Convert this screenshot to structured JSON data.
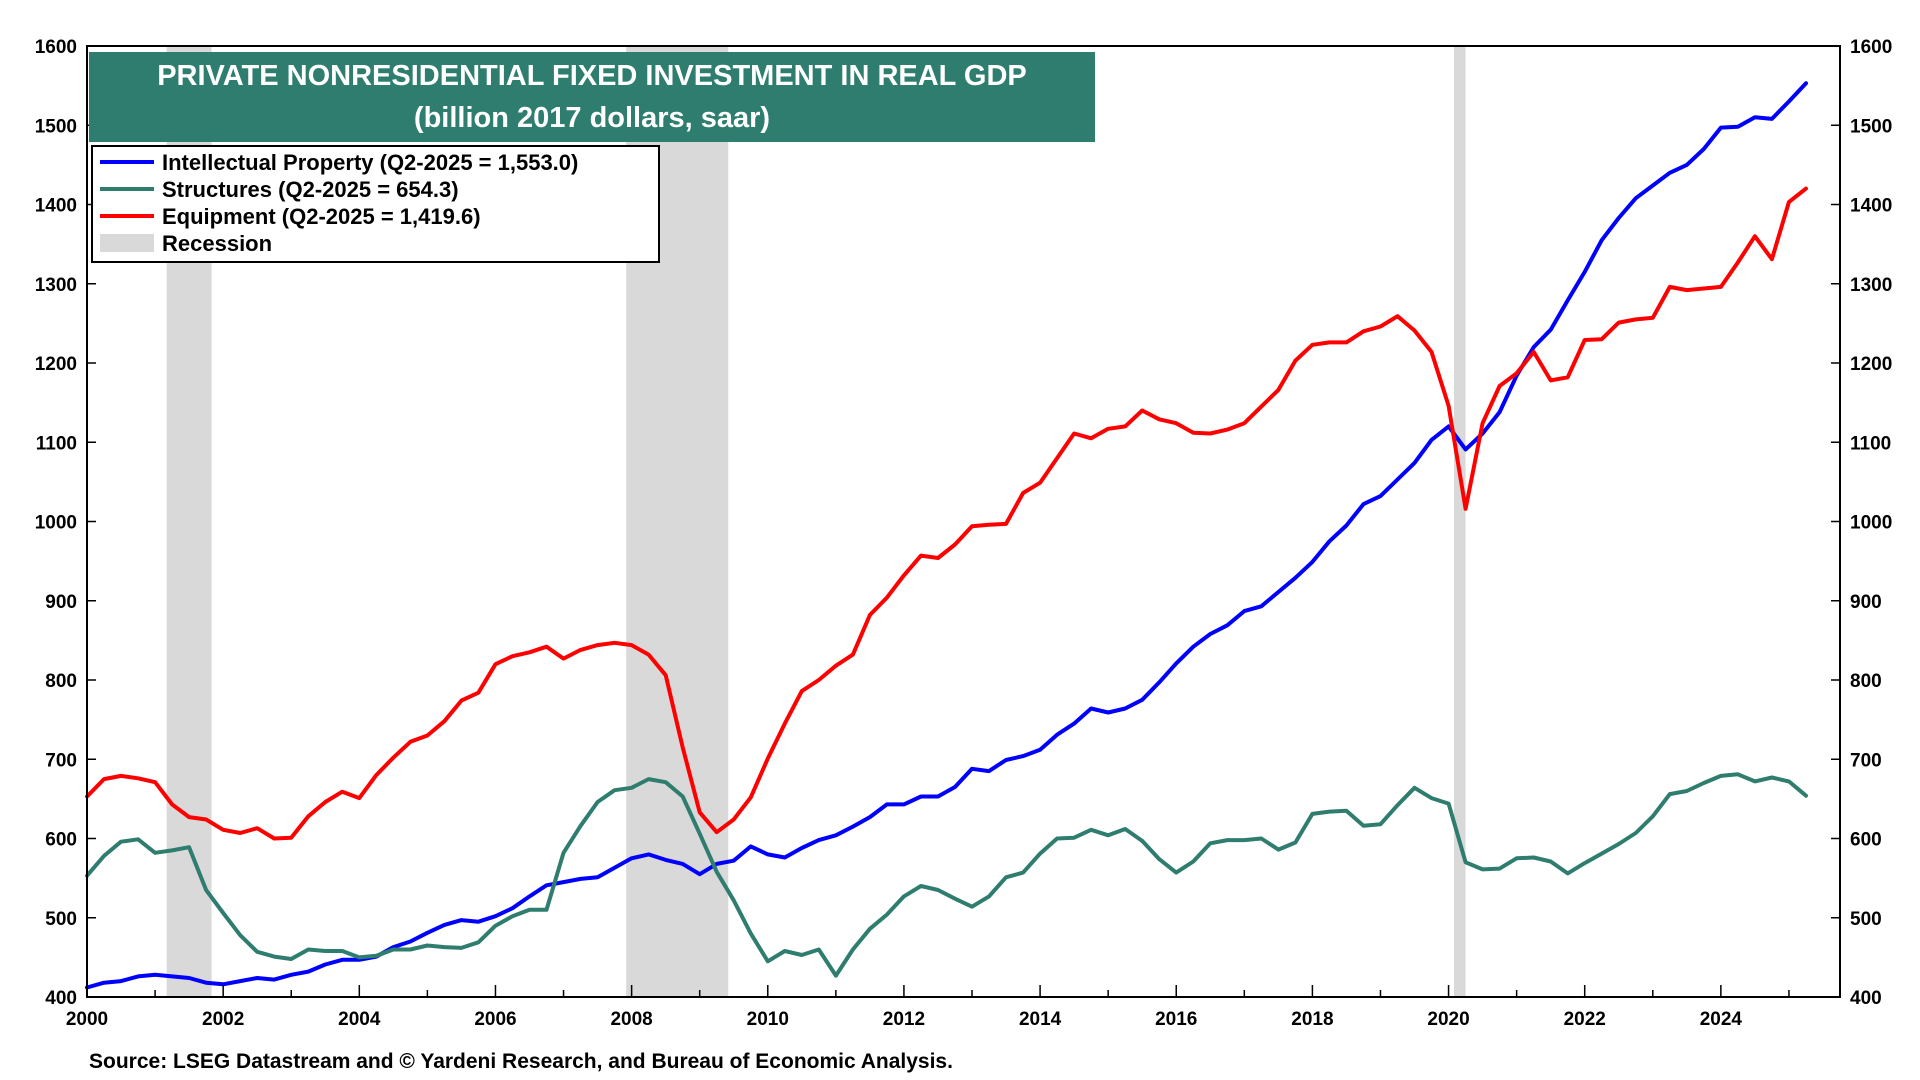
{
  "chart_data": {
    "type": "line",
    "title": "PRIVATE NONRESIDENTIAL FIXED INVESTMENT IN REAL GDP",
    "subtitle": "(billion 2017 dollars, saar)",
    "source": "Source: LSEG Datastream and © Yardeni Research, and Bureau of Economic Analysis.",
    "xlim": [
      2000,
      2025.75
    ],
    "ylim": [
      400,
      1600
    ],
    "x_ticks": [
      2000,
      2002,
      2004,
      2006,
      2008,
      2010,
      2012,
      2014,
      2016,
      2018,
      2020,
      2022,
      2024
    ],
    "x_tick_labels": [
      "2000",
      "2002",
      "2004",
      "2006",
      "2008",
      "2010",
      "2012",
      "2014",
      "2016",
      "2018",
      "2020",
      "2022",
      "2024"
    ],
    "y_ticks": [
      400,
      500,
      600,
      700,
      800,
      900,
      1000,
      1100,
      1200,
      1300,
      1400,
      1500,
      1600
    ],
    "y_tick_labels": [
      "400",
      "500",
      "600",
      "700",
      "800",
      "900",
      "1000",
      "1100",
      "1200",
      "1300",
      "1400",
      "1500",
      "1600"
    ],
    "grid": false,
    "legend_position": "top-left",
    "recessions": [
      {
        "start": 2001.17,
        "end": 2001.83
      },
      {
        "start": 2007.92,
        "end": 2009.42
      },
      {
        "start": 2020.08,
        "end": 2020.25
      }
    ],
    "recession_label": "Recession",
    "recession_color": "#d9d9d9",
    "x_start": 2000.0,
    "x_step": 0.25,
    "series": [
      {
        "name": "Intellectual Property (Q2-2025 = 1,553.0)",
        "color": "#0000ff",
        "values": [
          412,
          418,
          420,
          426,
          428,
          426,
          424,
          418,
          416,
          420,
          424,
          422,
          428,
          432,
          441,
          447,
          447,
          451,
          463,
          470,
          481,
          491,
          497,
          495,
          502,
          512,
          527,
          541,
          545,
          549,
          551,
          563,
          575,
          580,
          573,
          568,
          555,
          568,
          572,
          590,
          580,
          576,
          588,
          598,
          604,
          615,
          627,
          643,
          643,
          653,
          653,
          665,
          688,
          685,
          699,
          704,
          712,
          731,
          745,
          764,
          759,
          764,
          775,
          797,
          821,
          842,
          858,
          869,
          887,
          893,
          911,
          929,
          949,
          975,
          995,
          1022,
          1032,
          1053,
          1074,
          1103,
          1120,
          1091,
          1111,
          1138,
          1184,
          1220,
          1242,
          1279,
          1315,
          1355,
          1383,
          1408,
          1424,
          1440,
          1450,
          1470,
          1497,
          1498,
          1510,
          1508,
          1530,
          1553
        ]
      },
      {
        "name": "Structures  (Q2-2025 = 654.3)",
        "color": "#2e7d6e",
        "values": [
          553,
          578,
          596,
          599,
          582,
          585,
          589,
          535,
          506,
          478,
          457,
          451,
          448,
          460,
          458,
          458,
          450,
          452,
          460,
          460,
          465,
          463,
          462,
          469,
          490,
          502,
          510,
          510,
          582,
          616,
          646,
          661,
          664,
          675,
          671,
          653,
          606,
          558,
          522,
          480,
          445,
          458,
          453,
          460,
          427,
          460,
          486,
          504,
          527,
          540,
          535,
          524,
          514,
          527,
          551,
          557,
          581,
          600,
          601,
          611,
          604,
          612,
          597,
          574,
          557,
          571,
          594,
          598,
          598,
          600,
          586,
          595,
          631,
          634,
          635,
          616,
          618,
          642,
          664,
          651,
          644,
          570,
          561,
          562,
          575,
          576,
          571,
          556,
          569,
          581,
          593,
          607,
          628,
          656,
          660,
          670,
          679,
          681,
          672,
          677,
          672,
          654
        ]
      },
      {
        "name": "Equipment (Q2-2025 = 1,419.6)",
        "color": "#ff0000",
        "values": [
          653,
          675,
          679,
          676,
          671,
          643,
          627,
          624,
          611,
          607,
          613,
          600,
          601,
          628,
          646,
          659,
          651,
          680,
          702,
          722,
          730,
          748,
          774,
          784,
          820,
          830,
          835,
          842,
          827,
          838,
          844,
          847,
          844,
          832,
          806,
          715,
          633,
          608,
          624,
          652,
          701,
          745,
          786,
          800,
          818,
          832,
          882,
          904,
          932,
          957,
          954,
          971,
          994,
          996,
          997,
          1036,
          1049,
          1080,
          1111,
          1105,
          1117,
          1120,
          1140,
          1129,
          1124,
          1112,
          1111,
          1116,
          1124,
          1145,
          1166,
          1203,
          1223,
          1226,
          1226,
          1240,
          1246,
          1259,
          1241,
          1214,
          1146,
          1016,
          1124,
          1171,
          1187,
          1214,
          1178,
          1182,
          1229,
          1230,
          1251,
          1255,
          1257,
          1296,
          1292,
          1294,
          1296,
          1327,
          1360,
          1331,
          1403,
          1420
        ]
      }
    ]
  }
}
